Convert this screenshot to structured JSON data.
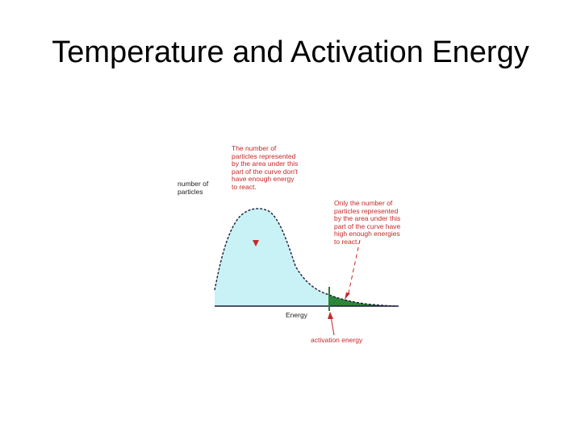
{
  "slide": {
    "title": "Temperature and Activation Energy"
  },
  "diagram": {
    "y_axis_label": "number of\nparticles",
    "x_axis_label": "Energy",
    "activation_label": "activation energy",
    "note_left": "The number of\nparticles represented\nby the area under this\npart of the curve don't\nhave enough energy\nto react.",
    "note_right": "Only the number of\nparticles represented\nby the area under this\npart of the curve have\nhigh enough energies\nto react.",
    "colors": {
      "main_fill": "#c9f2f6",
      "curve": "#1b1b3a",
      "tail_fill": "#2f8f3a",
      "marker": "#2e7d32",
      "annotation": "#c62828",
      "axis": "#1b1b3a"
    }
  }
}
